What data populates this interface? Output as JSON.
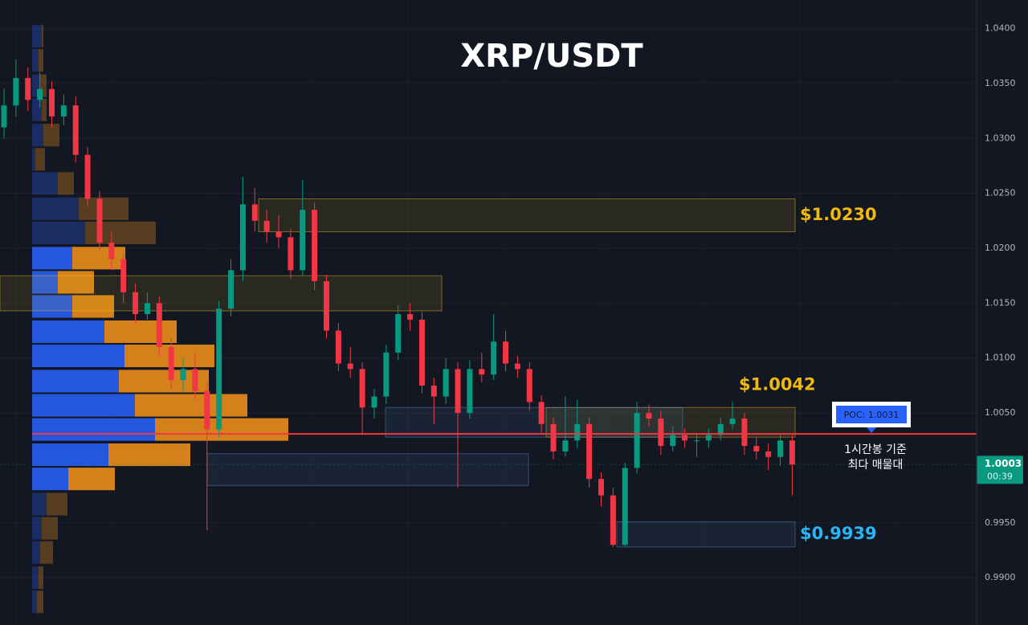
{
  "chart_data": {
    "type": "candlestick",
    "title": "XRP/USDT",
    "ylim": [
      0.9857,
      1.0426
    ],
    "yticks": [
      {
        "value": 1.04,
        "label": "1.0400"
      },
      {
        "value": 1.035,
        "label": "1.0350"
      },
      {
        "value": 1.03,
        "label": "1.0300"
      },
      {
        "value": 1.025,
        "label": "1.0250"
      },
      {
        "value": 1.02,
        "label": "1.0200"
      },
      {
        "value": 1.015,
        "label": "1.0150"
      },
      {
        "value": 1.01,
        "label": "1.0100"
      },
      {
        "value": 1.005,
        "label": "1.0050"
      },
      {
        "value": 0.995,
        "label": "0.9950"
      },
      {
        "value": 0.99,
        "label": "0.9900"
      }
    ],
    "grid": true,
    "up_color": "#089981",
    "down_color": "#f23645",
    "candles": [
      [
        1.031,
        1.0345,
        1.03,
        1.033
      ],
      [
        1.033,
        1.0372,
        1.032,
        1.0355
      ],
      [
        1.0355,
        1.0365,
        1.0325,
        1.0335
      ],
      [
        1.0335,
        1.036,
        1.0328,
        1.0345
      ],
      [
        1.0345,
        1.0352,
        1.031,
        1.032
      ],
      [
        1.032,
        1.034,
        1.0312,
        1.033
      ],
      [
        1.033,
        1.0338,
        1.0278,
        1.0285
      ],
      [
        1.0285,
        1.0292,
        1.0238,
        1.0245
      ],
      [
        1.0245,
        1.0252,
        1.0198,
        1.0205
      ],
      [
        1.0205,
        1.0215,
        1.018,
        1.019
      ],
      [
        1.019,
        1.0196,
        1.015,
        1.016
      ],
      [
        1.016,
        1.0168,
        1.0132,
        1.014
      ],
      [
        1.014,
        1.016,
        1.0135,
        1.015
      ],
      [
        1.015,
        1.0156,
        1.0102,
        1.011
      ],
      [
        1.011,
        1.0118,
        1.0072,
        1.008
      ],
      [
        1.008,
        1.01,
        1.007,
        1.009
      ],
      [
        1.009,
        1.0105,
        1.0062,
        1.007
      ],
      [
        1.007,
        1.0078,
        0.9943,
        1.0035
      ],
      [
        1.0035,
        1.0152,
        1.0028,
        1.0145
      ],
      [
        1.0145,
        1.019,
        1.0138,
        1.018
      ],
      [
        1.018,
        1.0265,
        1.017,
        1.024
      ],
      [
        1.024,
        1.0255,
        1.0215,
        1.0225
      ],
      [
        1.0225,
        1.0235,
        1.0205,
        1.0215
      ],
      [
        1.0215,
        1.023,
        1.02,
        1.021
      ],
      [
        1.021,
        1.0218,
        1.0172,
        1.018
      ],
      [
        1.018,
        1.0262,
        1.0175,
        1.0235
      ],
      [
        1.0235,
        1.0242,
        1.0162,
        1.017
      ],
      [
        1.017,
        1.0176,
        1.0118,
        1.0125
      ],
      [
        1.0125,
        1.0132,
        1.0088,
        1.0095
      ],
      [
        1.0095,
        1.011,
        1.0082,
        1.009
      ],
      [
        1.009,
        1.0096,
        1.003,
        1.0055
      ],
      [
        1.0055,
        1.0072,
        1.0045,
        1.0065
      ],
      [
        1.0065,
        1.0112,
        1.0058,
        1.0105
      ],
      [
        1.0105,
        1.0148,
        1.0098,
        1.014
      ],
      [
        1.014,
        1.015,
        1.0125,
        1.0135
      ],
      [
        1.0135,
        1.0142,
        1.0068,
        1.0075
      ],
      [
        1.0075,
        1.0082,
        1.004,
        1.0065
      ],
      [
        1.0065,
        1.01,
        1.0058,
        1.009
      ],
      [
        1.009,
        1.0096,
        0.9982,
        1.005
      ],
      [
        1.005,
        1.0098,
        1.0045,
        1.009
      ],
      [
        1.009,
        1.0105,
        1.0078,
        1.0085
      ],
      [
        1.0085,
        1.014,
        1.008,
        1.0115
      ],
      [
        1.0115,
        1.0125,
        1.0088,
        1.0095
      ],
      [
        1.0095,
        1.0102,
        1.0082,
        1.009
      ],
      [
        1.009,
        1.0096,
        1.0052,
        1.006
      ],
      [
        1.006,
        1.0066,
        1.0032,
        1.004
      ],
      [
        1.004,
        1.0046,
        1.0008,
        1.0015
      ],
      [
        1.0015,
        1.0065,
        1.001,
        1.0025
      ],
      [
        1.0025,
        1.0062,
        1.0018,
        1.004
      ],
      [
        1.004,
        1.0046,
        0.9982,
        0.999
      ],
      [
        0.999,
        0.9996,
        0.9965,
        0.9975
      ],
      [
        0.9975,
        0.9982,
        0.9928,
        0.993
      ],
      [
        0.993,
        1.0005,
        0.9928,
        1.0
      ],
      [
        1.0,
        1.006,
        0.9995,
        1.005
      ],
      [
        1.005,
        1.0058,
        1.0038,
        1.0045
      ],
      [
        1.0045,
        1.0052,
        1.0012,
        1.002
      ],
      [
        1.002,
        1.0038,
        1.0015,
        1.003
      ],
      [
        1.003,
        1.0036,
        1.0018,
        1.0025
      ],
      [
        1.0025,
        1.0032,
        1.001,
        1.0025
      ],
      [
        1.0025,
        1.0036,
        1.0018,
        1.003
      ],
      [
        1.003,
        1.0046,
        1.0025,
        1.004
      ],
      [
        1.004,
        1.006,
        1.0035,
        1.0045
      ],
      [
        1.0045,
        1.005,
        1.0012,
        1.002
      ],
      [
        1.002,
        1.0028,
        1.0008,
        1.0015
      ],
      [
        1.0015,
        1.0022,
        0.9998,
        1.001
      ],
      [
        1.001,
        1.003,
        1.0002,
        1.0025
      ],
      [
        1.0025,
        1.003,
        0.9975,
        1.0003
      ]
    ],
    "volume_profile": {
      "prices": [
        1.0393,
        1.0371,
        1.0348,
        1.0326,
        1.0303,
        1.0281,
        1.0259,
        1.0236,
        1.0214,
        1.0191,
        1.0169,
        1.0147,
        1.0124,
        1.0102,
        1.0079,
        1.0057,
        1.0035,
        1.0012,
        0.999,
        0.9967,
        0.9945,
        0.9923,
        0.99,
        0.9878
      ],
      "buy": [
        12,
        8,
        10,
        12,
        14,
        4,
        32,
        58,
        66,
        50,
        32,
        50,
        90,
        115,
        108,
        128,
        153,
        95,
        45,
        18,
        12,
        10,
        8,
        6
      ],
      "sell": [
        2,
        6,
        8,
        6,
        20,
        12,
        20,
        62,
        88,
        66,
        45,
        52,
        90,
        112,
        112,
        140,
        166,
        102,
        58,
        26,
        20,
        16,
        6,
        8
      ],
      "buy_color": "#2962ff",
      "sell_color": "#f7931a",
      "value_area": [
        0.998,
        1.02
      ]
    },
    "zones": [
      {
        "top": 1.0245,
        "bottom": 1.0215,
        "color": "#f0c419",
        "label": "$1.0230",
        "label_color": "#f0b90b"
      },
      {
        "top": 1.0175,
        "bottom": 1.0143,
        "color": "#f0c419"
      },
      {
        "top": 1.0055,
        "bottom": 1.0028,
        "color": "#f0c419",
        "label": "$1.0042",
        "label_color": "#f0b90b"
      },
      {
        "top": 1.0055,
        "bottom": 1.0028,
        "color": "#5b8fd6"
      },
      {
        "top": 1.0013,
        "bottom": 0.9984,
        "color": "#5b8fd6"
      },
      {
        "top": 0.9951,
        "bottom": 0.9928,
        "color": "#5b8fd6",
        "label": "$0.9939",
        "label_color": "#29b6f6"
      }
    ],
    "poc": {
      "value": 1.0031,
      "label": "POC: 1.0031",
      "color": "#f23645",
      "note": [
        "1시간봉 기준",
        "최다 매물대"
      ]
    },
    "last_price": {
      "value": 1.0003,
      "countdown": "00:39",
      "color": "#089981"
    }
  }
}
